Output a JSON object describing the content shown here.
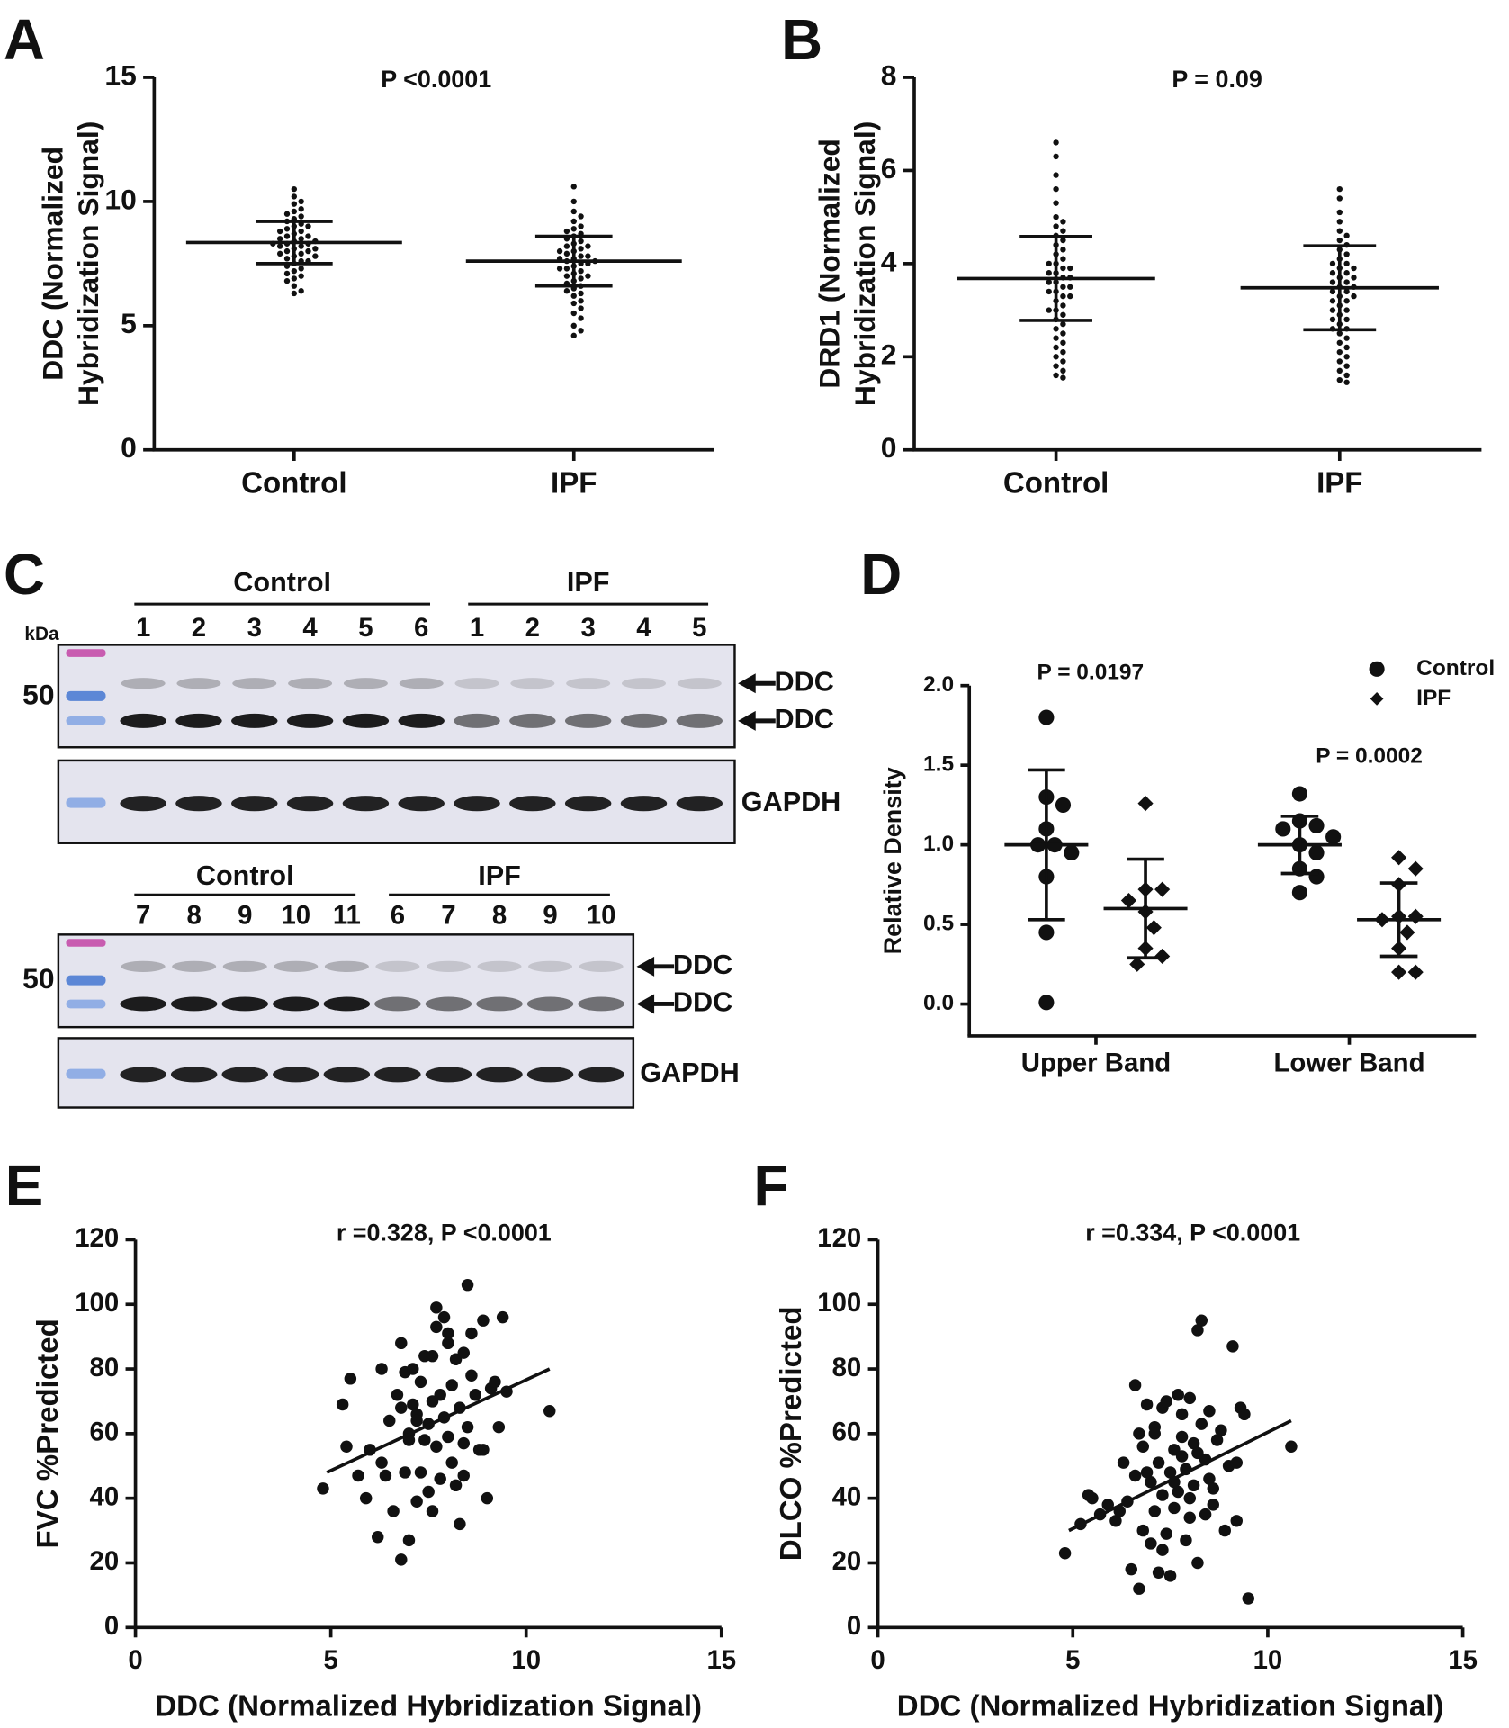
{
  "chart_data": [
    {
      "type": "dot",
      "panel_label": "A",
      "annotation": "P <0.0001",
      "ylabel": [
        "DDC (Normalized",
        "Hybridization Signal)"
      ],
      "categories": [
        "Control",
        "IPF"
      ],
      "values": [
        [
          10.5,
          10.2,
          10.0,
          9.9,
          9.7,
          9.6,
          9.5,
          9.4,
          9.3,
          9.2,
          9.1,
          9.0,
          9.0,
          8.9,
          8.8,
          8.8,
          8.7,
          8.6,
          8.6,
          8.5,
          8.5,
          8.4,
          8.4,
          8.3,
          8.3,
          8.3,
          8.2,
          8.2,
          8.1,
          8.1,
          8.0,
          8.0,
          7.9,
          7.9,
          7.8,
          7.8,
          7.7,
          7.6,
          7.6,
          7.5,
          7.4,
          7.3,
          7.2,
          7.1,
          7.0,
          6.9,
          6.8,
          6.6,
          6.4,
          6.3
        ],
        [
          10.6,
          10.0,
          9.6,
          9.4,
          9.2,
          9.0,
          8.9,
          8.8,
          8.7,
          8.6,
          8.5,
          8.4,
          8.3,
          8.2,
          8.2,
          8.1,
          8.0,
          8.0,
          7.9,
          7.8,
          7.8,
          7.7,
          7.7,
          7.6,
          7.6,
          7.5,
          7.5,
          7.4,
          7.3,
          7.3,
          7.2,
          7.1,
          7.0,
          7.0,
          6.9,
          6.8,
          6.7,
          6.6,
          6.5,
          6.4,
          6.3,
          6.2,
          6.0,
          5.9,
          5.7,
          5.5,
          5.3,
          5.0,
          4.8,
          4.6
        ]
      ],
      "mean": [
        8.35,
        7.6
      ],
      "sd": [
        0.85,
        1.0
      ],
      "ylim": [
        0,
        15
      ],
      "yticks": [
        0,
        5,
        10,
        15
      ]
    },
    {
      "type": "dot",
      "panel_label": "B",
      "annotation": "P = 0.09",
      "ylabel": [
        "DRD1 (Normalized",
        "Hybridization Signal)"
      ],
      "categories": [
        "Control",
        "IPF"
      ],
      "values": [
        [
          6.6,
          6.3,
          5.9,
          5.6,
          5.3,
          5.0,
          4.9,
          4.8,
          4.7,
          4.6,
          4.5,
          4.4,
          4.3,
          4.2,
          4.1,
          4.0,
          4.0,
          3.9,
          3.9,
          3.8,
          3.8,
          3.7,
          3.7,
          3.6,
          3.6,
          3.5,
          3.5,
          3.4,
          3.4,
          3.3,
          3.3,
          3.2,
          3.1,
          3.0,
          3.0,
          2.9,
          2.8,
          2.7,
          2.6,
          2.5,
          2.4,
          2.3,
          2.2,
          2.1,
          2.0,
          1.9,
          1.8,
          1.7,
          1.6,
          1.55
        ],
        [
          5.6,
          5.4,
          5.1,
          4.9,
          4.7,
          4.6,
          4.5,
          4.4,
          4.3,
          4.2,
          4.1,
          4.0,
          4.0,
          3.9,
          3.8,
          3.8,
          3.7,
          3.6,
          3.6,
          3.5,
          3.5,
          3.4,
          3.4,
          3.3,
          3.3,
          3.2,
          3.2,
          3.1,
          3.0,
          3.0,
          2.9,
          2.8,
          2.8,
          2.7,
          2.6,
          2.5,
          2.4,
          2.3,
          2.2,
          2.1,
          2.0,
          1.9,
          1.8,
          1.7,
          1.6,
          1.5,
          1.45,
          3.7,
          3.9,
          2.6
        ]
      ],
      "mean": [
        3.68,
        3.48
      ],
      "sd": [
        0.9,
        0.9
      ],
      "ylim": [
        0,
        8
      ],
      "yticks": [
        0,
        2,
        4,
        6,
        8
      ]
    },
    {
      "type": "dot",
      "panel_label": "D",
      "annotations": [
        "P = 0.0197",
        "P = 0.0002"
      ],
      "ylabel": [
        "Relative Density"
      ],
      "legend": "upper right",
      "categories": [
        "Upper Band",
        "Lower Band"
      ],
      "series": [
        {
          "name": "Control",
          "marker": "circle",
          "color": "#111111",
          "values": [
            [
              1.8,
              1.3,
              1.25,
              1.1,
              1.0,
              1.0,
              0.95,
              0.8,
              0.45,
              0.01
            ],
            [
              1.32,
              1.15,
              1.12,
              1.1,
              1.05,
              1.0,
              0.95,
              0.85,
              0.8,
              0.7
            ]
          ],
          "mean": [
            1.0,
            1.0
          ],
          "sd": [
            0.47,
            0.18
          ]
        },
        {
          "name": "IPF",
          "marker": "diamond",
          "color": "#111111",
          "values": [
            [
              1.26,
              0.72,
              0.72,
              0.65,
              0.58,
              0.48,
              0.35,
              0.3,
              0.25
            ],
            [
              0.92,
              0.85,
              0.75,
              0.55,
              0.55,
              0.53,
              0.45,
              0.35,
              0.2,
              0.2
            ]
          ],
          "mean": [
            0.6,
            0.53
          ],
          "sd": [
            0.31,
            0.23
          ]
        }
      ],
      "ylim": [
        -0.2,
        2.0
      ],
      "yticks": [
        {
          "value": 0,
          "label": "0.0"
        },
        {
          "value": 0.5,
          "label": "0.5"
        },
        {
          "value": 1,
          "label": "1.0"
        },
        {
          "value": 1.5,
          "label": "1.5"
        },
        {
          "value": 2,
          "label": "2.0"
        }
      ]
    },
    {
      "type": "scatter",
      "panel_label": "E",
      "annotation": "r =0.328, P <0.0001",
      "xlabel": "DDC (Normalized Hybridization Signal)",
      "ylabel": [
        "FVC %Predicted"
      ],
      "color": "#111111",
      "x": [
        4.8,
        5.3,
        5.4,
        5.5,
        5.7,
        5.9,
        6.0,
        6.2,
        6.3,
        6.4,
        6.5,
        6.6,
        6.7,
        6.8,
        6.8,
        6.9,
        6.9,
        7.0,
        7.0,
        7.1,
        7.1,
        7.2,
        7.2,
        7.3,
        7.3,
        7.4,
        7.4,
        7.5,
        7.5,
        7.6,
        7.6,
        7.7,
        7.7,
        7.8,
        7.8,
        7.9,
        7.9,
        8.0,
        8.0,
        8.1,
        8.1,
        8.2,
        8.2,
        8.3,
        8.3,
        8.4,
        8.4,
        8.5,
        8.5,
        8.6,
        8.6,
        8.7,
        8.8,
        8.9,
        9.0,
        9.1,
        9.2,
        9.3,
        9.4,
        9.5,
        7.0,
        6.3,
        7.6,
        8.0,
        8.4,
        7.2,
        6.8,
        8.9,
        10.6,
        7.7
      ],
      "values": [
        43,
        69,
        56,
        77,
        47,
        40,
        55,
        28,
        80,
        47,
        64,
        36,
        72,
        88,
        21,
        48,
        79,
        60,
        27,
        69,
        80,
        66,
        39,
        48,
        76,
        58,
        84,
        63,
        42,
        70,
        36,
        99,
        56,
        72,
        46,
        65,
        96,
        59,
        88,
        75,
        51,
        44,
        83,
        32,
        68,
        85,
        57,
        106,
        62,
        78,
        91,
        72,
        55,
        95,
        40,
        74,
        76,
        62,
        96,
        73,
        58,
        51,
        84,
        91,
        47,
        64,
        68,
        55,
        67,
        93
      ],
      "fit": {
        "x": [
          4.9,
          10.6
        ],
        "y": [
          48,
          80
        ]
      },
      "xlim": [
        0,
        15
      ],
      "xticks": [
        0,
        5,
        10,
        15
      ],
      "ylim": [
        0,
        120
      ],
      "yticks": [
        0,
        20,
        40,
        60,
        80,
        100,
        120
      ]
    },
    {
      "type": "scatter",
      "panel_label": "F",
      "annotation": "r =0.334, P <0.0001",
      "xlabel": "DDC (Normalized Hybridization Signal)",
      "ylabel": [
        "DLCO %Predicted"
      ],
      "color": "#111111",
      "x": [
        4.8,
        5.2,
        5.4,
        5.5,
        5.7,
        5.9,
        6.1,
        6.2,
        6.3,
        6.4,
        6.5,
        6.6,
        6.7,
        6.7,
        6.8,
        6.8,
        6.9,
        7.0,
        7.0,
        7.1,
        7.1,
        7.2,
        7.2,
        7.3,
        7.3,
        7.4,
        7.4,
        7.5,
        7.5,
        7.6,
        7.6,
        7.7,
        7.7,
        7.8,
        7.8,
        7.9,
        7.9,
        8.0,
        8.0,
        8.1,
        8.1,
        8.2,
        8.2,
        8.3,
        8.3,
        8.4,
        8.4,
        8.5,
        8.5,
        8.6,
        8.7,
        8.8,
        8.9,
        9.0,
        9.1,
        9.2,
        9.3,
        9.4,
        9.5,
        10.6,
        6.9,
        7.3,
        7.6,
        8.2,
        8.0,
        7.1,
        6.6,
        8.6,
        9.2,
        7.8
      ],
      "values": [
        23,
        32,
        41,
        40,
        35,
        38,
        33,
        36,
        51,
        39,
        18,
        75,
        12,
        60,
        56,
        30,
        69,
        45,
        26,
        62,
        36,
        17,
        51,
        68,
        41,
        70,
        29,
        48,
        16,
        55,
        37,
        72,
        42,
        59,
        66,
        27,
        49,
        34,
        71,
        44,
        57,
        20,
        92,
        63,
        95,
        35,
        52,
        67,
        46,
        38,
        58,
        61,
        30,
        50,
        87,
        33,
        68,
        66,
        9,
        56,
        48,
        24,
        45,
        54,
        40,
        60,
        47,
        43,
        51,
        53
      ],
      "fit": {
        "x": [
          4.9,
          10.6
        ],
        "y": [
          30,
          64
        ]
      },
      "xlim": [
        0,
        15
      ],
      "xticks": [
        0,
        5,
        10,
        15
      ],
      "ylim": [
        0,
        120
      ],
      "yticks": [
        0,
        20,
        40,
        60,
        80,
        100,
        120
      ]
    }
  ],
  "blot": {
    "panel_label": "C",
    "unit": "kDa",
    "panels": [
      {
        "groups": [
          {
            "label": "Control",
            "lanes": [
              "1",
              "2",
              "3",
              "4",
              "5",
              "6"
            ]
          },
          {
            "label": "IPF",
            "lanes": [
              "1",
              "2",
              "3",
              "4",
              "5"
            ]
          }
        ],
        "marker": "50",
        "bands": [
          "DDC",
          "DDC"
        ],
        "loading": "GAPDH"
      },
      {
        "groups": [
          {
            "label": "Control",
            "lanes": [
              "7",
              "8",
              "9",
              "10",
              "11"
            ]
          },
          {
            "label": "IPF",
            "lanes": [
              "6",
              "7",
              "8",
              "9",
              "10"
            ]
          }
        ],
        "marker": "50",
        "bands": [
          "DDC",
          "DDC"
        ],
        "loading": "GAPDH"
      }
    ]
  }
}
